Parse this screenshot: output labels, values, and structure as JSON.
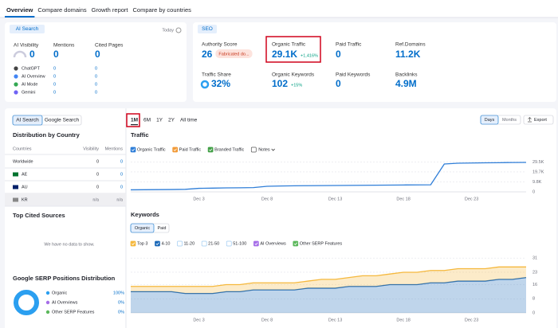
{
  "tabs": [
    "Overview",
    "Compare domains",
    "Growth report",
    "Compare by countries"
  ],
  "ai_card": {
    "badge": "AI Search",
    "date": "Today",
    "metrics": [
      {
        "label": "AI Visibility",
        "value": 0
      },
      {
        "label": "Mentions",
        "value": 0
      },
      {
        "label": "Cited Pages",
        "value": 0
      }
    ],
    "rows": [
      {
        "name": "ChatGPT",
        "mentions": 0,
        "cited": 0
      },
      {
        "name": "AI Overview",
        "mentions": 0,
        "cited": 0
      },
      {
        "name": "AI Mode",
        "mentions": 0,
        "cited": 0
      },
      {
        "name": "Gemini",
        "mentions": 0,
        "cited": 0
      }
    ]
  },
  "seo_card": {
    "badge": "SEO",
    "metrics": [
      {
        "label": "Authority Score",
        "value": 26,
        "tag": "Fabricated do..."
      },
      {
        "label": "Organic Traffic",
        "value": "29.1K",
        "change": "+1,416%"
      },
      {
        "label": "Paid Traffic",
        "value": 0
      },
      {
        "label": "Ref.Domains",
        "value": "11.2K"
      },
      {
        "label": "Traffic Share",
        "value": "32%"
      },
      {
        "label": "Organic Keywords",
        "value": 102,
        "change": "+15%"
      },
      {
        "label": "Paid Keywords",
        "value": 0
      },
      {
        "label": "Backlinks",
        "value": "4.9M"
      }
    ]
  },
  "left_panel": {
    "toggle": [
      "AI Search",
      "Google Search"
    ],
    "distribution": {
      "title": "Distribution by Country",
      "columns": [
        "Countries",
        "Visibility",
        "Mentions"
      ],
      "rows": [
        [
          "Worldwide",
          0,
          0
        ],
        [
          "AE",
          0,
          0
        ],
        [
          "AU",
          0,
          0
        ],
        [
          "KR",
          "n/a",
          "n/a"
        ]
      ]
    },
    "top_cited": {
      "title": "Top Cited Sources",
      "empty": "We have no data to show."
    },
    "serp": {
      "type": "pie",
      "title": "Google SERP Positions Distribution",
      "categories": [
        "Organic",
        "AI Overviews",
        "Other SERP Features"
      ],
      "values": [
        100,
        0,
        0
      ],
      "value_labels": [
        "100%",
        "0%",
        "0%"
      ],
      "colors": [
        "#2b9ff0",
        "#a66ee8",
        "#5cb85c"
      ]
    }
  },
  "periods": [
    "1M",
    "6M",
    "1Y",
    "2Y",
    "All time"
  ],
  "active_period": 0,
  "granularity": [
    "Days",
    "Months"
  ],
  "export": "Export",
  "traffic_chart": {
    "type": "line",
    "title": "Traffic",
    "notes": "Notes",
    "categories": [
      null,
      null,
      null,
      null,
      null,
      "Dec 3",
      null,
      null,
      null,
      null,
      "Dec 8",
      null,
      null,
      null,
      null,
      "Dec 13",
      null,
      null,
      null,
      null,
      "Dec 18",
      null,
      null,
      null,
      null,
      "Dec 23",
      null,
      null,
      null,
      null
    ],
    "series": [
      {
        "name": "Organic Traffic",
        "color": "#2f7ed8",
        "checked": true,
        "values": [
          2000,
          2100,
          2200,
          2300,
          2500,
          3500,
          3700,
          3900,
          4000,
          4200,
          5500,
          5800,
          6000,
          6100,
          6200,
          6300,
          6400,
          6500,
          6600,
          6700,
          6800,
          6900,
          7000,
          27500,
          28300,
          28500,
          28700,
          28800,
          29000,
          29100
        ]
      },
      {
        "name": "Paid Traffic",
        "color": "#f29b38",
        "checked": true
      },
      {
        "name": "Branded Traffic",
        "color": "#43a047",
        "checked": true
      }
    ],
    "ylim": [
      0,
      33000
    ],
    "yticks": [
      0,
      {
        "value": 9800,
        "label": "9.8K"
      },
      {
        "value": 19700,
        "label": "19.7K"
      },
      {
        "value": 29500,
        "label": "29.5K"
      }
    ],
    "grid": true
  },
  "keywords_chart": {
    "type": "area",
    "title": "Keywords",
    "toggle": [
      "Organic",
      "Paid"
    ],
    "stacked": true,
    "categories": [
      null,
      null,
      null,
      null,
      null,
      "Dec 3",
      null,
      null,
      null,
      null,
      "Dec 8",
      null,
      null,
      null,
      null,
      "Dec 13",
      null,
      null,
      null,
      null,
      "Dec 18",
      null,
      null,
      null,
      null,
      "Dec 23",
      null,
      null,
      null,
      null
    ],
    "series": [
      {
        "name": "Top 3",
        "color": "#f5b83d",
        "checked": true,
        "values": [
          3,
          3,
          3,
          3,
          4,
          4,
          4,
          4,
          4,
          4,
          4,
          4,
          4,
          4,
          5,
          5,
          5,
          6,
          6,
          6,
          7,
          7,
          7,
          7,
          7,
          7,
          7,
          7,
          7,
          6
        ]
      },
      {
        "name": "4-10",
        "color": "#1a68b8",
        "checked": true,
        "values": [
          12,
          12,
          12,
          12,
          11,
          11,
          11,
          12,
          12,
          13,
          13,
          13,
          13,
          14,
          14,
          14,
          15,
          15,
          15,
          16,
          16,
          16,
          17,
          17,
          18,
          18,
          18,
          19,
          19,
          20
        ]
      },
      {
        "name": "11-20",
        "color": "#8ec2f0",
        "checked": false
      },
      {
        "name": "21-50",
        "color": "#9fcbf2",
        "checked": false
      },
      {
        "name": "51-100",
        "color": "#b9d9f5",
        "checked": false
      },
      {
        "name": "AI Overviews",
        "color": "#a66ee8",
        "checked": true
      },
      {
        "name": "Other SERP Features",
        "color": "#5cb85c",
        "checked": true
      }
    ],
    "ylim": [
      0,
      32
    ],
    "yticks": [
      0,
      8,
      16,
      23,
      31
    ],
    "grid": true
  }
}
